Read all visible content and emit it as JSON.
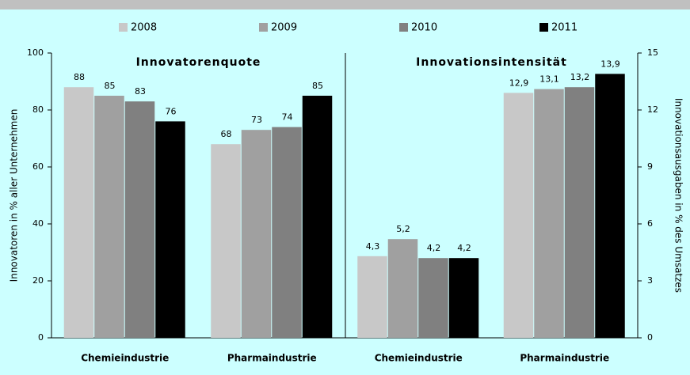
{
  "chart_data": [
    {
      "type": "bar",
      "title": "Innovatorenquote",
      "ylabel": "Innovatoren in % aller Unternehmen",
      "categories": [
        "Chemieindustrie",
        "Pharmaindustrie"
      ],
      "series": [
        {
          "name": "2008",
          "color": "#c8c8c8",
          "values": [
            88,
            68
          ]
        },
        {
          "name": "2009",
          "color": "#a0a0a0",
          "values": [
            85,
            73
          ]
        },
        {
          "name": "2010",
          "color": "#808080",
          "values": [
            83,
            74
          ]
        },
        {
          "name": "2011",
          "color": "#000000",
          "values": [
            76,
            85
          ]
        }
      ],
      "ylim": [
        0,
        100
      ],
      "yticks": [
        0,
        20,
        40,
        60,
        80,
        100
      ]
    },
    {
      "type": "bar",
      "title": "Innovationsintensität",
      "ylabel": "Innovationsausgaben in % des Umsatzes",
      "categories": [
        "Chemieindustrie",
        "Pharmaindustrie"
      ],
      "series": [
        {
          "color": "#c8c8c8",
          "values": [
            4.3,
            12.9
          ],
          "value_labels": [
            "4,3",
            "12,9"
          ]
        },
        {
          "color": "#a0a0a0",
          "values": [
            5.2,
            13.1
          ],
          "value_labels": [
            "5,2",
            "13,1"
          ]
        },
        {
          "color": "#808080",
          "values": [
            4.2,
            13.2
          ],
          "value_labels": [
            "4,2",
            "13,2"
          ]
        },
        {
          "color": "#000000",
          "values": [
            4.2,
            13.9
          ],
          "value_labels": [
            "4,2",
            "13,9"
          ]
        }
      ],
      "ylim": [
        0,
        15
      ],
      "yticks": [
        0,
        3,
        6,
        9,
        12,
        15
      ]
    }
  ]
}
